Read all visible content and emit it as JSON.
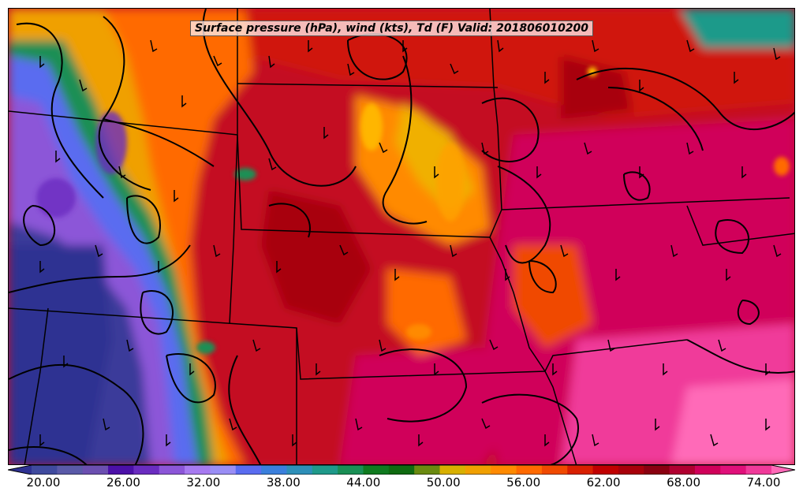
{
  "map": {
    "title": "Surface pressure (hPa), wind (kts), Td (F) Valid: 201806010200"
  },
  "colorbar": {
    "tick_labels": [
      "20.00",
      "26.00",
      "32.00",
      "38.00",
      "44.00",
      "50.00",
      "56.00",
      "62.00",
      "68.00",
      "74.00"
    ],
    "min": 18,
    "max": 76,
    "interval": 2,
    "colors": [
      "#2e3192",
      "#3f4a9e",
      "#5a5aa8",
      "#6b4fb0",
      "#4b10a8",
      "#6a2cc0",
      "#8c56d8",
      "#a77af0",
      "#9a8ef5",
      "#5a6cf0",
      "#3a7fdc",
      "#2d8fb8",
      "#1f9a8a",
      "#1a8f55",
      "#0f7a1f",
      "#0f6a10",
      "#6a8a10",
      "#d8b000",
      "#f0a000",
      "#ff8a00",
      "#ff6a00",
      "#f04a00",
      "#d82000",
      "#c00000",
      "#a8000a",
      "#8a0010",
      "#b00030",
      "#d0005a",
      "#e0107a",
      "#f03a9a",
      "#ff6ab8"
    ]
  },
  "chart_data": {
    "type": "heatmap",
    "title": "Surface pressure (hPa), wind (kts), Td (F) Valid: 201806010200",
    "colorbar_ticks": [
      20,
      26,
      32,
      38,
      44,
      50,
      56,
      62,
      68,
      74
    ],
    "colorbar_range": [
      18,
      76
    ],
    "fields": [
      "Surface pressure (hPa)",
      "wind (kts)",
      "Td (F)"
    ],
    "valid_time": "201806010200"
  }
}
